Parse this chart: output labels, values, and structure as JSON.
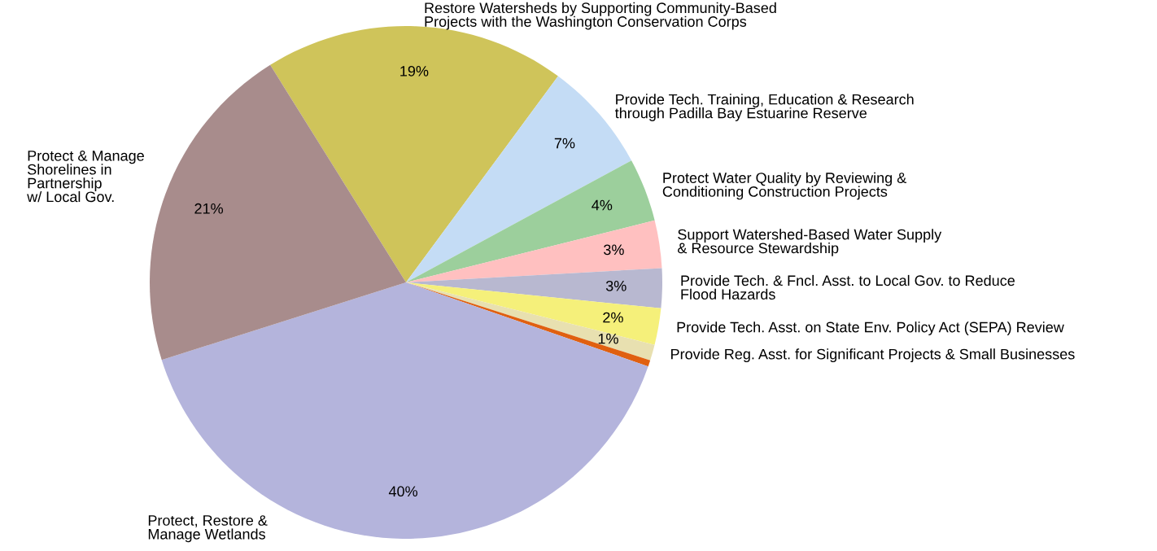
{
  "chart_data": {
    "type": "pie",
    "categories": [
      "Restore Watersheds by Supporting Community-Based\nProjects with the Washington Conservation Corps",
      "Provide Tech. Training, Education & Research\nthrough Padilla Bay Estuarine Reserve",
      "Protect Water Quality by Reviewing &\nConditioning Construction Projects",
      "Support Watershed-Based Water Supply\n& Resource Stewardship",
      "Provide Tech. & Fncl. Asst. to Local Gov. to Reduce\nFlood Hazards",
      "Provide Tech. Asst. on State Env. Policy Act (SEPA) Review",
      "Provide Reg. Asst. for Significant Projects & Small Businesses",
      null,
      "Protect, Restore &\nManage Wetlands",
      "Protect & Manage\nShorelines in\nPartnership\nw/ Local Gov."
    ],
    "values": [
      19,
      7,
      4,
      3,
      2.5,
      2.3,
      1,
      0.4,
      39.8,
      21
    ],
    "value_labels": [
      "19%",
      "7%",
      "4%",
      "3%",
      "3%",
      "2%",
      "1%",
      null,
      "40%",
      "21%"
    ],
    "colors": [
      "#cfc45a",
      "#c4dcf5",
      "#9ccf9c",
      "#ffc0c0",
      "#b8b8d0",
      "#f5f07a",
      "#e8e0b0",
      "#e06010",
      "#b4b4dc",
      "#a88c8c"
    ],
    "legend": false
  }
}
